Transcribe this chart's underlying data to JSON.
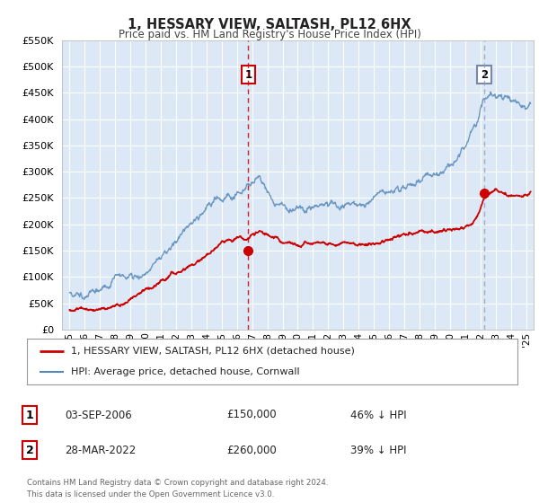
{
  "title": "1, HESSARY VIEW, SALTASH, PL12 6HX",
  "subtitle": "Price paid vs. HM Land Registry's House Price Index (HPI)",
  "legend_label_red": "1, HESSARY VIEW, SALTASH, PL12 6HX (detached house)",
  "legend_label_blue": "HPI: Average price, detached house, Cornwall",
  "transaction1_date": "03-SEP-2006",
  "transaction1_price": "£150,000",
  "transaction1_hpi": "46% ↓ HPI",
  "transaction2_date": "28-MAR-2022",
  "transaction2_price": "£260,000",
  "transaction2_hpi": "39% ↓ HPI",
  "footnote1": "Contains HM Land Registry data © Crown copyright and database right 2024.",
  "footnote2": "This data is licensed under the Open Government Licence v3.0.",
  "xmin": 1994.5,
  "xmax": 2025.5,
  "ymin": 0,
  "ymax": 550000,
  "yticks": [
    0,
    50000,
    100000,
    150000,
    200000,
    250000,
    300000,
    350000,
    400000,
    450000,
    500000,
    550000
  ],
  "ytick_labels": [
    "£0",
    "£50K",
    "£100K",
    "£150K",
    "£200K",
    "£250K",
    "£300K",
    "£350K",
    "£400K",
    "£450K",
    "£500K",
    "£550K"
  ],
  "xticks": [
    1995,
    1996,
    1997,
    1998,
    1999,
    2000,
    2001,
    2002,
    2003,
    2004,
    2005,
    2006,
    2007,
    2008,
    2009,
    2010,
    2011,
    2012,
    2013,
    2014,
    2015,
    2016,
    2017,
    2018,
    2019,
    2020,
    2021,
    2022,
    2023,
    2024,
    2025
  ],
  "chart_bg": "#dce8f5",
  "grid_color": "#ffffff",
  "fig_bg": "#ffffff",
  "red_color": "#cc0000",
  "blue_color": "#5588bb",
  "transaction1_x": 2006.75,
  "transaction1_y": 150000,
  "transaction2_x": 2022.25,
  "transaction2_y": 260000,
  "badge1_color": "#cc0000",
  "badge2_color": "#7788aa"
}
